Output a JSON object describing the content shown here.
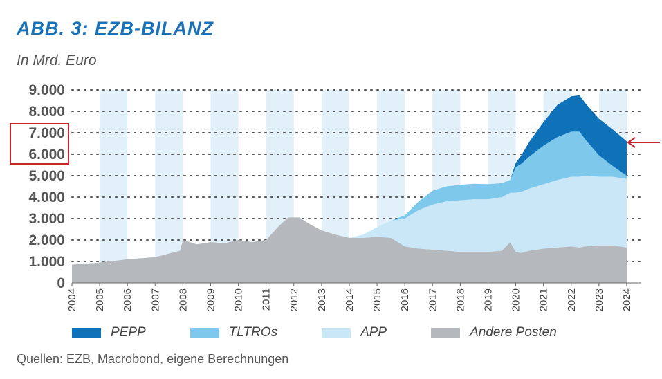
{
  "title": "ABB. 3: EZB-BILANZ",
  "subtitle": "In Mrd. Euro",
  "source": "Quellen: EZB, Macrobond, eigene Berechnungen",
  "colors": {
    "PEPP": "#0f72b9",
    "TLTROs": "#7ec8ec",
    "APP": "#c9e7f6",
    "Andere Posten": "#b5b8bd",
    "band": "#e2f0fa",
    "highlight": "#c9242b"
  },
  "chart_data": {
    "type": "area",
    "stacked": true,
    "title": "ABB. 3: EZB-BILANZ",
    "ylabel": "In Mrd. Euro",
    "xlabel": "",
    "ylim": [
      0,
      9000
    ],
    "yticks": [
      0,
      1000,
      2000,
      3000,
      4000,
      5000,
      6000,
      7000,
      8000,
      9000
    ],
    "ytick_labels": [
      "0",
      "1.000",
      "2.000",
      "3.000",
      "4.000",
      "5.000",
      "6.000",
      "7.000",
      "8.000",
      "9.000"
    ],
    "xlim": [
      2004,
      2024.5
    ],
    "xtick_labels": [
      "2004",
      "2005",
      "2006",
      "2007",
      "2008",
      "2009",
      "2010",
      "2011",
      "2012",
      "2013",
      "2014",
      "2015",
      "2016",
      "2017",
      "2018",
      "2019",
      "2020",
      "2021",
      "2022",
      "2023",
      "2024"
    ],
    "grid": "horizontal dotted",
    "legend_position": "bottom",
    "shaded_years": [
      2005,
      2007,
      2009,
      2011,
      2013,
      2015,
      2017,
      2019,
      2021,
      2023
    ],
    "x": [
      2004.0,
      2005.0,
      2006.0,
      2007.0,
      2007.9,
      2008.0,
      2008.5,
      2009.0,
      2009.5,
      2010.0,
      2010.5,
      2011.0,
      2011.5,
      2011.8,
      2012.2,
      2012.5,
      2013.0,
      2013.5,
      2014.0,
      2014.5,
      2015.0,
      2015.5,
      2016.0,
      2016.5,
      2017.0,
      2017.5,
      2018.0,
      2018.5,
      2019.0,
      2019.5,
      2019.8,
      2020.0,
      2020.2,
      2020.5,
      2021.0,
      2021.5,
      2022.0,
      2022.3,
      2022.5,
      2023.0,
      2023.5,
      2024.0
    ],
    "series": [
      {
        "name": "Andere Posten",
        "values": [
          850,
          950,
          1100,
          1200,
          1500,
          2000,
          1800,
          1900,
          1850,
          2000,
          1900,
          2000,
          2700,
          3050,
          3050,
          2800,
          2450,
          2250,
          2100,
          2100,
          2150,
          2100,
          1700,
          1600,
          1550,
          1500,
          1450,
          1450,
          1450,
          1500,
          1900,
          1450,
          1400,
          1500,
          1600,
          1650,
          1700,
          1650,
          1700,
          1750,
          1750,
          1650
        ]
      },
      {
        "name": "APP",
        "values": [
          0,
          0,
          0,
          0,
          0,
          0,
          0,
          0,
          0,
          0,
          0,
          0,
          0,
          0,
          0,
          0,
          0,
          0,
          0,
          150,
          450,
          800,
          1300,
          1800,
          2100,
          2300,
          2400,
          2450,
          2450,
          2500,
          2300,
          2750,
          2850,
          2900,
          3000,
          3150,
          3250,
          3300,
          3300,
          3200,
          3200,
          3200
        ]
      },
      {
        "name": "TLTROs",
        "values": [
          0,
          0,
          0,
          0,
          0,
          0,
          0,
          0,
          0,
          0,
          0,
          0,
          0,
          0,
          0,
          0,
          0,
          0,
          0,
          0,
          0,
          0,
          150,
          400,
          650,
          700,
          720,
          720,
          700,
          650,
          600,
          1200,
          1300,
          1500,
          1800,
          2000,
          2100,
          2100,
          1700,
          1000,
          500,
          150
        ]
      },
      {
        "name": "PEPP",
        "values": [
          0,
          0,
          0,
          0,
          0,
          0,
          0,
          0,
          0,
          0,
          0,
          0,
          0,
          0,
          0,
          0,
          0,
          0,
          0,
          0,
          0,
          0,
          0,
          0,
          0,
          0,
          0,
          0,
          0,
          0,
          0,
          200,
          400,
          700,
          1100,
          1500,
          1650,
          1700,
          1700,
          1700,
          1700,
          1600
        ]
      }
    ]
  }
}
